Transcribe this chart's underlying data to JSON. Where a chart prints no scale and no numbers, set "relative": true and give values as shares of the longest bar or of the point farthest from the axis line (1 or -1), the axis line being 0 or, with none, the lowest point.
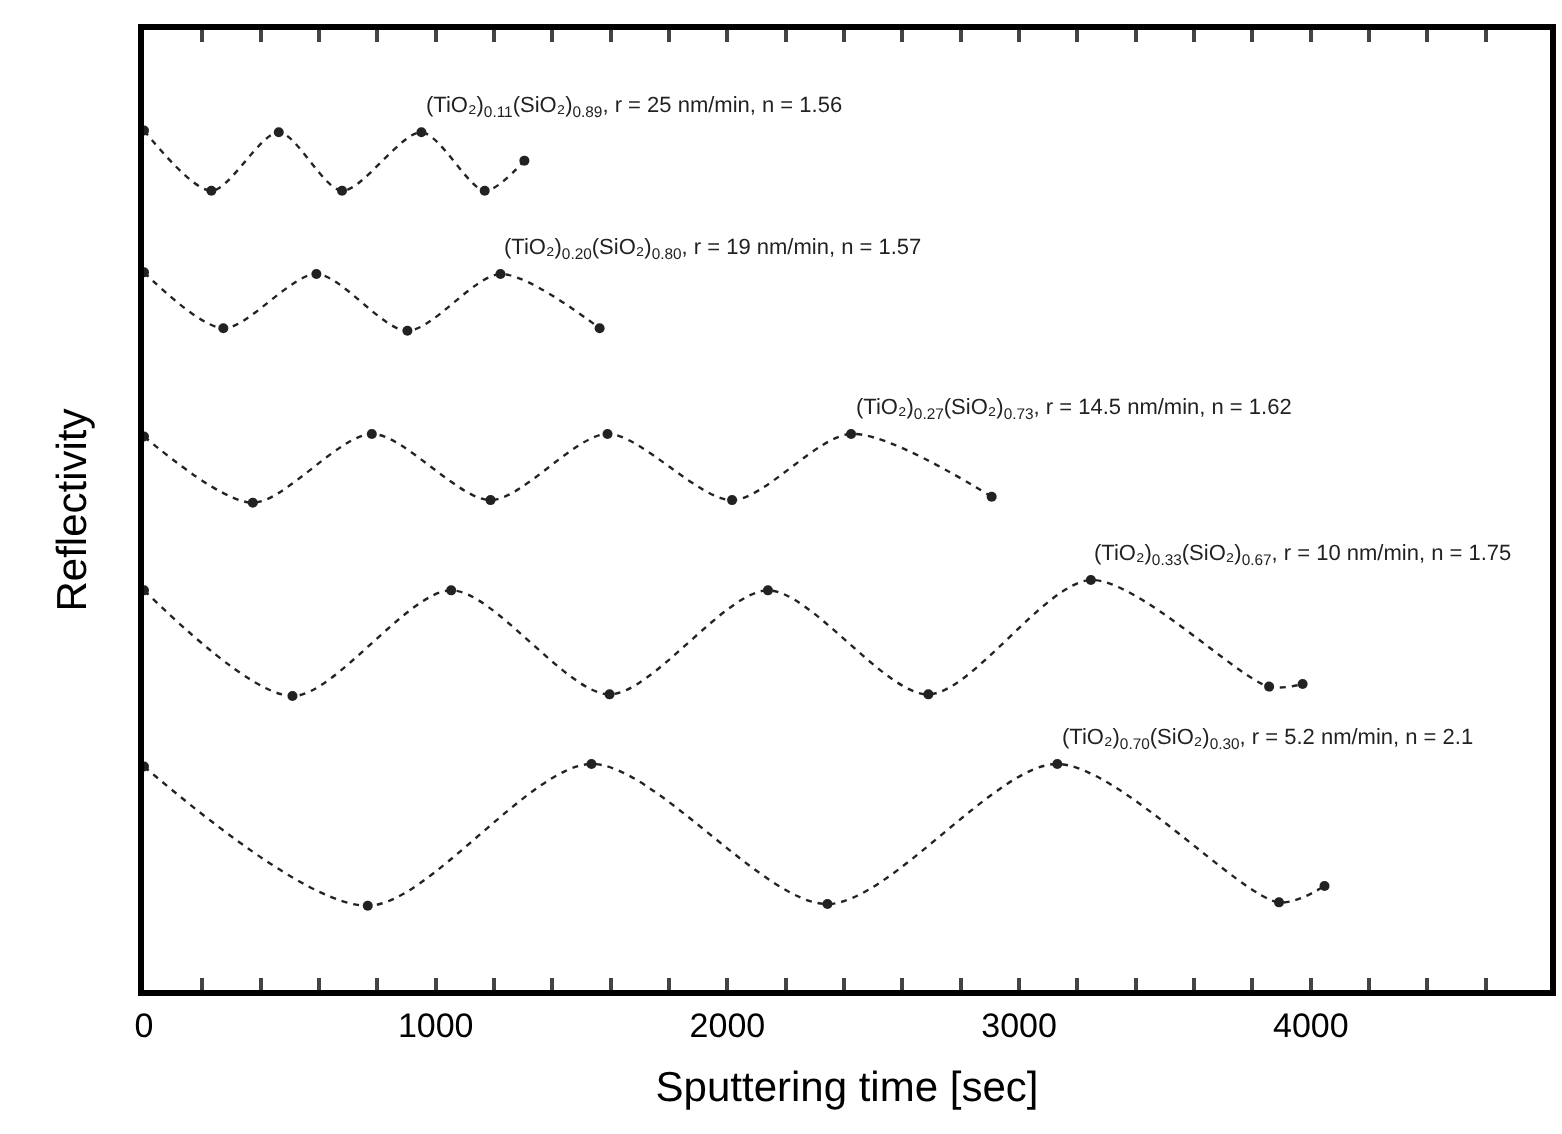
{
  "chart_data": {
    "type": "line",
    "xlabel": "Sputtering time [sec]",
    "ylabel": "Reflectivity",
    "relative": true,
    "xlim": [
      0,
      4820
    ],
    "xticks": [
      0,
      1000,
      2000,
      3000,
      4000,
      {
        "value": 200,
        "label": null
      },
      {
        "value": 400,
        "label": null
      },
      {
        "value": 600,
        "label": null
      },
      {
        "value": 800,
        "label": null
      },
      {
        "value": 1200,
        "label": null
      },
      {
        "value": 1400,
        "label": null
      },
      {
        "value": 1600,
        "label": null
      },
      {
        "value": 1800,
        "label": null
      },
      {
        "value": 2200,
        "label": null
      },
      {
        "value": 2400,
        "label": null
      },
      {
        "value": 2600,
        "label": null
      },
      {
        "value": 2800,
        "label": null
      },
      {
        "value": 3200,
        "label": null
      },
      {
        "value": 3400,
        "label": null
      },
      {
        "value": 3600,
        "label": null
      },
      {
        "value": 3800,
        "label": null
      },
      {
        "value": 4200,
        "label": null
      },
      {
        "value": 4400,
        "label": null
      },
      {
        "value": 4600,
        "label": null
      }
    ],
    "legend": false,
    "marker": "circle",
    "line_style": "dotted",
    "series": [
      {
        "name": "(TiO₂)$_{0.11}$(SiO₂)$_{0.89}$, r = 25 nm/min, n = 1.56",
        "color": "#222222",
        "x": [
          0,
          231,
          462,
          679,
          951,
          1168,
          1304
        ],
        "values": [
          1.0,
          0.93,
          0.998,
          0.93,
          0.998,
          0.93,
          0.965
        ]
      },
      {
        "name": "(TiO₂)$_{0.20}$(SiO₂)$_{0.80}$, r = 19 nm/min, n = 1.57",
        "color": "#222222",
        "x": [
          0,
          272,
          591,
          903,
          1222,
          1562
        ],
        "values": [
          0.835,
          0.77,
          0.833,
          0.767,
          0.833,
          0.77
        ]
      },
      {
        "name": "(TiO₂)$_{0.27}$(SiO₂)$_{0.73}$, r = 14.5 nm/min, n = 1.62",
        "color": "#222222",
        "x": [
          0,
          373,
          781,
          1188,
          1589,
          2016,
          2424,
          2906
        ],
        "values": [
          0.644,
          0.567,
          0.647,
          0.57,
          0.647,
          0.57,
          0.647,
          0.574
        ]
      },
      {
        "name": "(TiO₂)$_{0.33}$(SiO₂)$_{0.67}$, r = 10 nm/min, n = 1.75",
        "color": "#222222",
        "x": [
          0,
          509,
          1053,
          1596,
          2139,
          2689,
          3246,
          3857,
          3972
        ],
        "values": [
          0.465,
          0.342,
          0.465,
          0.344,
          0.465,
          0.344,
          0.477,
          0.353,
          0.356
        ]
      },
      {
        "name": "(TiO₂)$_{0.70}$(SiO₂)$_{0.30}$, r = 5.2 nm/min, n = 2.1",
        "color": "#222222",
        "x": [
          0,
          767,
          1534,
          2343,
          3131,
          3891,
          4047
        ],
        "values": [
          0.26,
          0.098,
          0.263,
          0.1,
          0.263,
          0.102,
          0.121
        ]
      }
    ]
  }
}
